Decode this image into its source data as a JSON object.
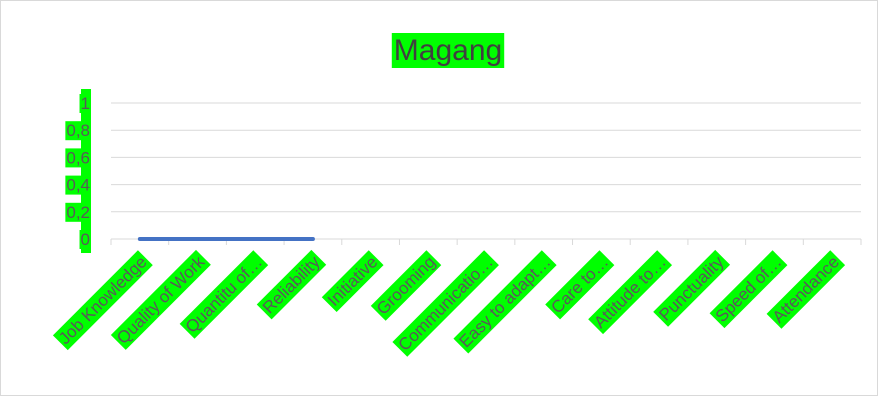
{
  "chart_data": {
    "type": "line",
    "title": "Magang",
    "xlabel": "",
    "ylabel": "",
    "categories": [
      "Job Knowledge",
      "Quality of Work",
      "Quantitu of…",
      "Reliability",
      "Initiative",
      "Grooming",
      "Communicatio…",
      "Easy to adapt…",
      "Care to…",
      "Attitude to…",
      "Punctuality",
      "Speed of…",
      "Attendance"
    ],
    "y_ticks": [
      "0",
      "0,2",
      "0,4",
      "0,6",
      "0,8",
      "1"
    ],
    "ylim": [
      0,
      1
    ],
    "grid": true,
    "legend": "none",
    "series": [
      {
        "values": [
          0,
          0,
          0,
          0,
          null,
          null,
          null,
          null,
          null,
          null,
          null,
          null,
          null
        ]
      }
    ]
  },
  "colors": {
    "label_highlight": "#00ff00",
    "series": "#4472c4",
    "gridline": "#d9d9d9",
    "text": "#595959"
  }
}
